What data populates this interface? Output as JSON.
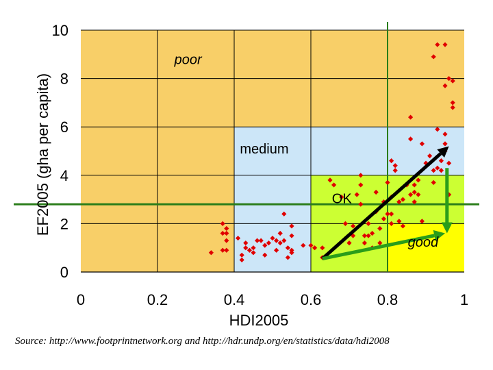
{
  "chart_data": {
    "type": "scatter",
    "xlabel": "HDI2005",
    "ylabel": "EF2005 (gha per capita)",
    "xlim": [
      0,
      1
    ],
    "ylim": [
      0,
      10
    ],
    "x_ticks": [
      "0",
      "0.2",
      "0.4",
      "0.6",
      "0.8",
      "1"
    ],
    "y_ticks": [
      "0",
      "2",
      "4",
      "6",
      "8",
      "10"
    ],
    "grid": true,
    "colors": {
      "poor": "#f8cf68",
      "medium": "#cce6f8",
      "ok": "#ccff33",
      "good": "#ffff00",
      "points": "#e00000",
      "threshold": "#2a7d1a",
      "arrow_black": "#000000",
      "arrow_green": "#2a9d1a"
    },
    "zones": [
      {
        "name": "poor",
        "label": "poor",
        "x": [
          0,
          1
        ],
        "y": [
          0,
          10
        ]
      },
      {
        "name": "medium",
        "label": "medium",
        "x": [
          0.4,
          1
        ],
        "y": [
          0,
          6
        ]
      },
      {
        "name": "ok",
        "label": "OK",
        "x": [
          0.6,
          1
        ],
        "y": [
          0,
          4
        ]
      },
      {
        "name": "good",
        "label": "good",
        "x": [
          0.8,
          1
        ],
        "y": [
          0,
          2
        ]
      }
    ],
    "threshold_lines": [
      {
        "orientation": "horizontal",
        "value": 2.8
      },
      {
        "orientation": "vertical",
        "value": 0.8
      }
    ],
    "arrows": [
      {
        "name": "black-arrow",
        "from": [
          0.63,
          0.55
        ],
        "to": [
          0.96,
          5.2
        ]
      },
      {
        "name": "green-arrow-right",
        "from": [
          0.63,
          0.55
        ],
        "to": [
          0.95,
          1.6
        ]
      },
      {
        "name": "green-arrow-down",
        "from": [
          0.955,
          4.3
        ],
        "to": [
          0.955,
          1.6
        ]
      }
    ],
    "points": [
      [
        0.34,
        0.8
      ],
      [
        0.37,
        2.0
      ],
      [
        0.37,
        1.6
      ],
      [
        0.38,
        1.6
      ],
      [
        0.38,
        1.8
      ],
      [
        0.37,
        0.9
      ],
      [
        0.38,
        0.9
      ],
      [
        0.38,
        1.3
      ],
      [
        0.41,
        1.4
      ],
      [
        0.42,
        0.7
      ],
      [
        0.42,
        0.5
      ],
      [
        0.43,
        1.0
      ],
      [
        0.43,
        1.2
      ],
      [
        0.44,
        0.9
      ],
      [
        0.45,
        0.8
      ],
      [
        0.45,
        1.0
      ],
      [
        0.46,
        1.3
      ],
      [
        0.47,
        1.3
      ],
      [
        0.48,
        0.7
      ],
      [
        0.48,
        1.1
      ],
      [
        0.49,
        1.2
      ],
      [
        0.5,
        1.4
      ],
      [
        0.51,
        1.3
      ],
      [
        0.51,
        0.9
      ],
      [
        0.52,
        1.2
      ],
      [
        0.52,
        1.6
      ],
      [
        0.53,
        1.3
      ],
      [
        0.53,
        2.4
      ],
      [
        0.54,
        1.0
      ],
      [
        0.54,
        0.6
      ],
      [
        0.55,
        0.8
      ],
      [
        0.55,
        0.9
      ],
      [
        0.55,
        1.5
      ],
      [
        0.55,
        1.9
      ],
      [
        0.58,
        1.1
      ],
      [
        0.6,
        1.1
      ],
      [
        0.61,
        1.0
      ],
      [
        0.63,
        1.0
      ],
      [
        0.63,
        0.6
      ],
      [
        0.65,
        3.8
      ],
      [
        0.66,
        3.6
      ],
      [
        0.68,
        3.1
      ],
      [
        0.69,
        2.0
      ],
      [
        0.7,
        1.2
      ],
      [
        0.71,
        1.5
      ],
      [
        0.71,
        1.9
      ],
      [
        0.72,
        3.2
      ],
      [
        0.73,
        3.6
      ],
      [
        0.73,
        4.0
      ],
      [
        0.73,
        2.8
      ],
      [
        0.74,
        1.5
      ],
      [
        0.74,
        1.2
      ],
      [
        0.75,
        2.0
      ],
      [
        0.75,
        1.5
      ],
      [
        0.76,
        1.0
      ],
      [
        0.76,
        1.6
      ],
      [
        0.77,
        3.3
      ],
      [
        0.77,
        2.5
      ],
      [
        0.78,
        1.8
      ],
      [
        0.78,
        1.2
      ],
      [
        0.79,
        2.9
      ],
      [
        0.79,
        2.2
      ],
      [
        0.8,
        3.7
      ],
      [
        0.8,
        2.4
      ],
      [
        0.81,
        2.0
      ],
      [
        0.81,
        3.1
      ],
      [
        0.81,
        4.6
      ],
      [
        0.81,
        2.4
      ],
      [
        0.82,
        4.4
      ],
      [
        0.82,
        4.2
      ],
      [
        0.83,
        2.1
      ],
      [
        0.83,
        2.9
      ],
      [
        0.84,
        3.0
      ],
      [
        0.84,
        1.9
      ],
      [
        0.85,
        3.6
      ],
      [
        0.86,
        3.2
      ],
      [
        0.86,
        6.4
      ],
      [
        0.86,
        5.5
      ],
      [
        0.87,
        3.3
      ],
      [
        0.87,
        3.6
      ],
      [
        0.87,
        2.9
      ],
      [
        0.88,
        3.8
      ],
      [
        0.88,
        3.2
      ],
      [
        0.89,
        5.3
      ],
      [
        0.89,
        2.1
      ],
      [
        0.9,
        4.5
      ],
      [
        0.91,
        4.8
      ],
      [
        0.92,
        4.2
      ],
      [
        0.92,
        3.7
      ],
      [
        0.93,
        4.3
      ],
      [
        0.93,
        5.9
      ],
      [
        0.94,
        4.2
      ],
      [
        0.94,
        4.6
      ],
      [
        0.95,
        5.7
      ],
      [
        0.95,
        5.3
      ],
      [
        0.95,
        5.0
      ],
      [
        0.96,
        4.5
      ],
      [
        0.96,
        3.2
      ],
      [
        0.97,
        7.0
      ],
      [
        0.97,
        6.8
      ],
      [
        0.95,
        7.7
      ],
      [
        0.96,
        8.0
      ],
      [
        0.97,
        7.9
      ],
      [
        0.93,
        9.4
      ],
      [
        0.95,
        9.4
      ],
      [
        0.92,
        8.9
      ]
    ]
  },
  "source": "Source: http://www.footprintnetwork.org and http://hdr.undp.org/en/statistics/data/hdi2008"
}
